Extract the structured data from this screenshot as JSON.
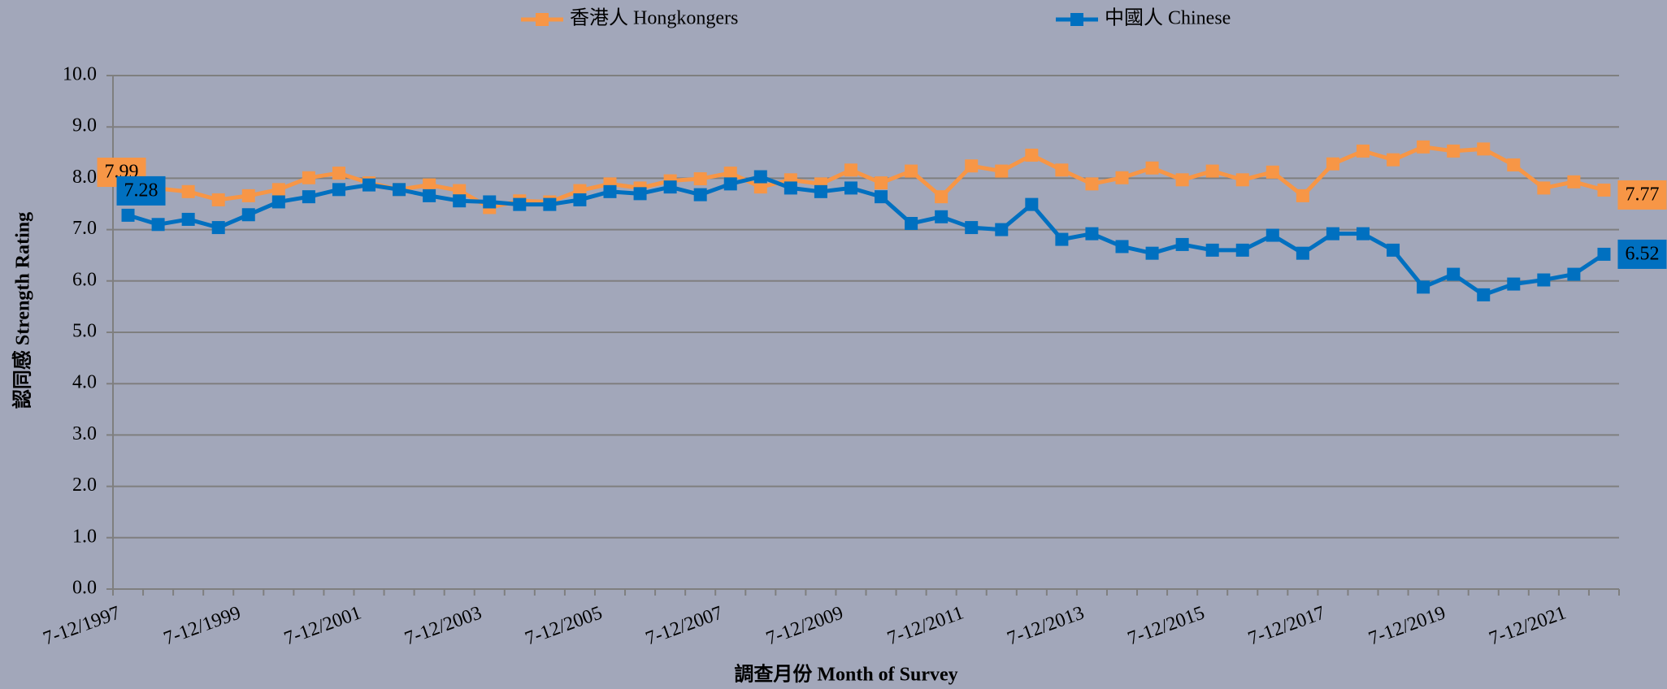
{
  "chart_data": {
    "type": "line",
    "y_title": "認同感 Strength Rating",
    "x_title": "調查月份 Month of Survey",
    "categories": [
      "7-12/1997",
      null,
      null,
      null,
      "7-12/1999",
      null,
      null,
      null,
      "7-12/2001",
      null,
      null,
      null,
      "7-12/2003",
      null,
      null,
      null,
      "7-12/2005",
      null,
      null,
      null,
      "7-12/2007",
      null,
      null,
      null,
      "7-12/2009",
      null,
      null,
      null,
      "7-12/2011",
      null,
      null,
      null,
      "7-12/2013",
      null,
      null,
      null,
      "7-12/2015",
      null,
      null,
      null,
      "7-12/2017",
      null,
      null,
      null,
      "7-12/2019",
      null,
      null,
      null,
      "7-12/2021",
      null
    ],
    "series": [
      {
        "name": "香港人 Hongkongers",
        "color": "#f79646",
        "values": [
          7.99,
          7.8,
          7.74,
          7.58,
          7.66,
          7.78,
          8.01,
          8.1,
          7.91,
          7.78,
          7.87,
          7.76,
          7.43,
          7.56,
          7.54,
          7.76,
          7.89,
          7.81,
          7.95,
          7.99,
          8.1,
          7.83,
          7.97,
          7.89,
          8.16,
          7.91,
          8.14,
          7.64,
          8.24,
          8.14,
          8.45,
          8.16,
          7.89,
          8.01,
          8.2,
          7.97,
          8.14,
          7.97,
          8.12,
          7.66,
          8.28,
          8.53,
          8.36,
          8.61,
          8.53,
          8.57,
          8.26,
          7.81,
          7.93,
          7.77
        ]
      },
      {
        "name": "中國人 Chinese",
        "color": "#0070c0",
        "values": [
          7.28,
          7.1,
          7.2,
          7.04,
          7.29,
          7.54,
          7.64,
          7.78,
          7.87,
          7.78,
          7.66,
          7.56,
          7.54,
          7.49,
          7.49,
          7.58,
          7.74,
          7.7,
          7.83,
          7.68,
          7.89,
          8.03,
          7.81,
          7.74,
          7.81,
          7.64,
          7.12,
          7.25,
          7.04,
          7.0,
          7.49,
          6.81,
          6.92,
          6.67,
          6.54,
          6.71,
          6.6,
          6.6,
          6.89,
          6.54,
          6.92,
          6.92,
          6.6,
          5.88,
          6.13,
          5.73,
          5.94,
          6.02,
          6.13,
          6.52
        ]
      }
    ],
    "ylim": [
      0,
      10
    ],
    "yticks": [
      {
        "value": 0,
        "label": "0.0"
      },
      {
        "value": 1,
        "label": "1.0"
      },
      {
        "value": 2,
        "label": "2.0"
      },
      {
        "value": 3,
        "label": "3.0"
      },
      {
        "value": 4,
        "label": "4.0"
      },
      {
        "value": 5,
        "label": "5.0"
      },
      {
        "value": 6,
        "label": "6.0"
      },
      {
        "value": 7,
        "label": "7.0"
      },
      {
        "value": 8,
        "label": "8.0"
      },
      {
        "value": 9,
        "label": "9.0"
      },
      {
        "value": 10,
        "label": "10.0"
      }
    ],
    "grid": true,
    "legend": "top"
  }
}
